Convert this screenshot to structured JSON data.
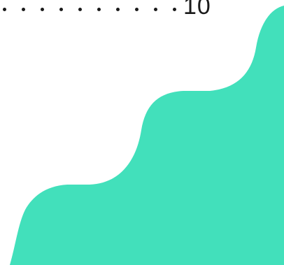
{
  "toc": {
    "entry_page_number": "10"
  },
  "decoration": {
    "shape": "wave-staircase",
    "color": "#42e0bb"
  },
  "colors": {
    "text": "#1a1a1a",
    "background": "#ffffff",
    "accent": "#42e0bb"
  }
}
